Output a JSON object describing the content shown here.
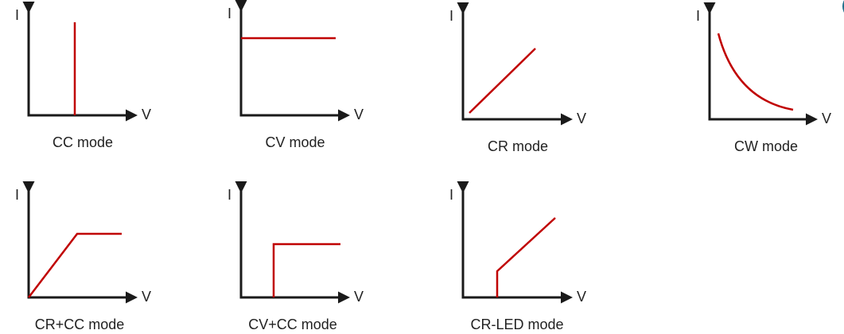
{
  "panels": [
    {
      "y_axis": "I",
      "x_axis": "V",
      "caption": "CC mode"
    },
    {
      "y_axis": "I",
      "x_axis": "V",
      "caption": "CV mode"
    },
    {
      "y_axis": "I",
      "x_axis": "V",
      "caption": "CR mode"
    },
    {
      "y_axis": "I",
      "x_axis": "V",
      "caption": "CW mode"
    },
    {
      "y_axis": "I",
      "x_axis": "V",
      "caption": "CR+CC mode"
    },
    {
      "y_axis": "I",
      "x_axis": "V",
      "caption": "CV+CC mode"
    },
    {
      "y_axis": "I",
      "x_axis": "V",
      "caption": "CR-LED mode"
    }
  ]
}
